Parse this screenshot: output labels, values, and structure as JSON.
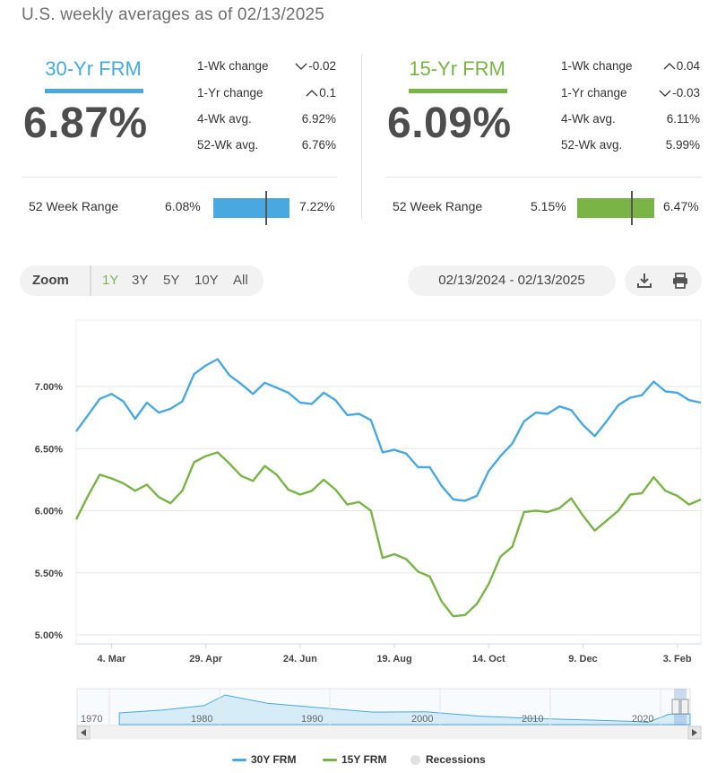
{
  "page": {
    "title": "U.S. weekly averages as of 02/13/2025"
  },
  "panels": [
    {
      "label": "30-Yr FRM",
      "color": "#4aa8e0",
      "rate": "6.87%",
      "stats": [
        {
          "label": "1-Wk change",
          "value": "-0.02",
          "direction": "down"
        },
        {
          "label": "1-Yr change",
          "value": "0.1",
          "direction": "up"
        },
        {
          "label": "4-Wk avg.",
          "value": "6.92%",
          "direction": ""
        },
        {
          "label": "52-Wk avg.",
          "value": "6.76%",
          "direction": ""
        }
      ],
      "range_label": "52 Week Range",
      "range_min": "6.08%",
      "range_max": "7.22%",
      "range_current_fraction": 0.69
    },
    {
      "label": "15-Yr FRM",
      "color": "#7ab346",
      "rate": "6.09%",
      "stats": [
        {
          "label": "1-Wk change",
          "value": "0.04",
          "direction": "up"
        },
        {
          "label": "1-Yr change",
          "value": "-0.03",
          "direction": "down"
        },
        {
          "label": "4-Wk avg.",
          "value": "6.11%",
          "direction": ""
        },
        {
          "label": "52-Wk avg.",
          "value": "5.99%",
          "direction": ""
        }
      ],
      "range_label": "52 Week Range",
      "range_min": "5.15%",
      "range_max": "6.47%",
      "range_current_fraction": 0.71
    }
  ],
  "toolbar": {
    "zoom_label": "Zoom",
    "zoom_options": [
      "1Y",
      "3Y",
      "5Y",
      "10Y",
      "All"
    ],
    "active_zoom": "1Y",
    "date_range": "02/13/2024 - 02/13/2025",
    "download_icon": "download-icon",
    "print_icon": "print-icon"
  },
  "chart_data": {
    "type": "line",
    "ylim": [
      5.0,
      7.4
    ],
    "y_ticks": [
      5.0,
      5.5,
      6.0,
      6.5,
      7.0
    ],
    "y_tick_labels": [
      "5.00%",
      "5.50%",
      "6.00%",
      "6.50%",
      "7.00%"
    ],
    "grid": true,
    "x_tick_labels": [
      "4. Mar",
      "29. Apr",
      "24. Jun",
      "19. Aug",
      "14. Oct",
      "9. Dec",
      "3. Feb"
    ],
    "x_tick_indices": [
      3,
      11,
      19,
      27,
      35,
      43,
      51
    ],
    "series": [
      {
        "name": "30Y FRM",
        "color": "#4aa8e0",
        "values": [
          6.64,
          6.77,
          6.9,
          6.94,
          6.88,
          6.74,
          6.87,
          6.79,
          6.82,
          6.88,
          7.1,
          7.17,
          7.22,
          7.09,
          7.02,
          6.94,
          7.03,
          6.99,
          6.95,
          6.87,
          6.86,
          6.95,
          6.89,
          6.77,
          6.78,
          6.73,
          6.47,
          6.49,
          6.46,
          6.35,
          6.35,
          6.2,
          6.09,
          6.08,
          6.12,
          6.32,
          6.44,
          6.54,
          6.72,
          6.79,
          6.78,
          6.84,
          6.81,
          6.69,
          6.6,
          6.72,
          6.85,
          6.91,
          6.93,
          7.04,
          6.96,
          6.95,
          6.89,
          6.87
        ]
      },
      {
        "name": "15Y FRM",
        "color": "#7ab346",
        "values": [
          5.93,
          6.12,
          6.29,
          6.26,
          6.22,
          6.16,
          6.21,
          6.11,
          6.06,
          6.16,
          6.39,
          6.44,
          6.47,
          6.38,
          6.28,
          6.24,
          6.36,
          6.29,
          6.17,
          6.13,
          6.16,
          6.25,
          6.17,
          6.05,
          6.07,
          6.0,
          5.62,
          5.65,
          5.61,
          5.51,
          5.47,
          5.27,
          5.15,
          5.16,
          5.25,
          5.41,
          5.63,
          5.71,
          5.99,
          6.0,
          5.99,
          6.02,
          6.1,
          5.96,
          5.84,
          5.92,
          6.0,
          6.13,
          6.14,
          6.27,
          6.16,
          6.12,
          6.05,
          6.09
        ]
      }
    ]
  },
  "navigator": {
    "x_tick_labels": [
      "1970",
      "1980",
      "1990",
      "2000",
      "2010",
      "2020"
    ],
    "scroll_left_icon": "arrow-left-icon",
    "scroll_right_icon": "arrow-right-icon"
  },
  "legend": {
    "items": [
      {
        "label": "30Y FRM",
        "color": "#4aa8e0"
      },
      {
        "label": "15Y FRM",
        "color": "#7ab346"
      },
      {
        "label": "Recessions",
        "color": "#e0e0e0"
      }
    ]
  }
}
